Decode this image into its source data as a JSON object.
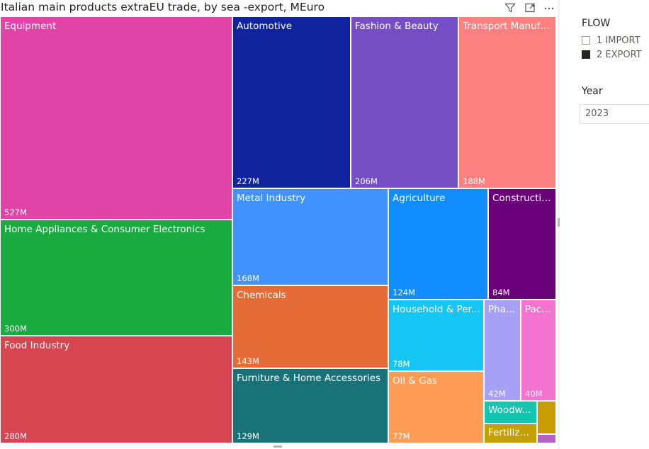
{
  "chart_data": {
    "type": "treemap",
    "title": "Italian main products extraEU trade, by sea -export, MEuro",
    "unit": "MEuro",
    "items": [
      {
        "name": "Equipment",
        "value_label": "527M",
        "value": 527,
        "color": "#e044a7"
      },
      {
        "name": "Home Appliances & Consumer Electronics",
        "value_label": "300M",
        "value": 300,
        "color": "#1aab40"
      },
      {
        "name": "Food Industry",
        "value_label": "280M",
        "value": 280,
        "color": "#d64550"
      },
      {
        "name": "Automotive",
        "value_label": "227M",
        "value": 227,
        "color": "#12239e"
      },
      {
        "name": "Fashion & Beauty",
        "value_label": "206M",
        "value": 206,
        "color": "#744ec2"
      },
      {
        "name": "Transport Manufa...",
        "value_label": "188M",
        "value": 188,
        "color": "#fd8080"
      },
      {
        "name": "Metal Industry",
        "value_label": "168M",
        "value": 168,
        "color": "#4092ff"
      },
      {
        "name": "Chemicals",
        "value_label": "143M",
        "value": 143,
        "color": "#e66c37"
      },
      {
        "name": "Furniture & Home Accessories",
        "value_label": "129M",
        "value": 129,
        "color": "#197278"
      },
      {
        "name": "Agriculture",
        "value_label": "124M",
        "value": 124,
        "color": "#118dff"
      },
      {
        "name": "Constructio...",
        "value_label": "84M",
        "value": 84,
        "color": "#6b007b"
      },
      {
        "name": "Household & Per...",
        "value_label": "78M",
        "value": 78,
        "color": "#15c6f4"
      },
      {
        "name": "Oil & Gas",
        "value_label": "77M",
        "value": 77,
        "color": "#fe9b54"
      },
      {
        "name": "Phar...",
        "value_label": "42M",
        "value": 42,
        "color": "#a6a0f7"
      },
      {
        "name": "Pac...",
        "value_label": "40M",
        "value": 40,
        "color": "#f472d0"
      },
      {
        "name": "Woodw...",
        "value_label": "",
        "value": null,
        "color": "#12c6b0"
      },
      {
        "name": "Fertilizers",
        "value_label": "",
        "value": null,
        "color": "#c4a000"
      },
      {
        "name": "",
        "value_label": "",
        "value": null,
        "color": "#c99c00"
      },
      {
        "name": "",
        "value_label": "",
        "value": null,
        "color": "#b560c9"
      }
    ]
  },
  "header_icons": [
    "filter-icon",
    "focus-mode-icon",
    "more-options-icon"
  ],
  "flow_slicer": {
    "title": "FLOW",
    "options": [
      {
        "label": "1 IMPORT",
        "selected": false
      },
      {
        "label": "2 EXPORT",
        "selected": true
      }
    ]
  },
  "year_slicer": {
    "title": "Year",
    "value": "2023"
  }
}
